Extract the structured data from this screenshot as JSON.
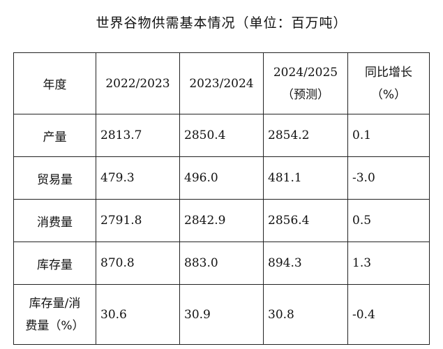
{
  "title": "世界谷物供需基本情况（单位：百万吨）",
  "table": {
    "headers": {
      "year": "年度",
      "y1": "2022/2023",
      "y2": "2023/2024",
      "y3_line1": "2024/2025",
      "y3_line2": "（预测）",
      "yoy_line1": "同比增长",
      "yoy_line2": "（%）"
    },
    "rows": [
      {
        "label": "产量",
        "values": [
          "2813.7",
          "2850.4",
          "2854.2",
          "0.1"
        ]
      },
      {
        "label": "贸易量",
        "values": [
          "479.3",
          "496.0",
          "481.1",
          "-3.0"
        ]
      },
      {
        "label": "消费量",
        "values": [
          "2791.8",
          "2842.9",
          "2856.4",
          "0.5"
        ]
      },
      {
        "label": "库存量",
        "values": [
          "870.8",
          "883.0",
          "894.3",
          "1.3"
        ]
      },
      {
        "label_line1": "库存量/消",
        "label_line2": "费量（%）",
        "values": [
          "30.6",
          "30.9",
          "30.8",
          "-0.4"
        ]
      }
    ]
  }
}
